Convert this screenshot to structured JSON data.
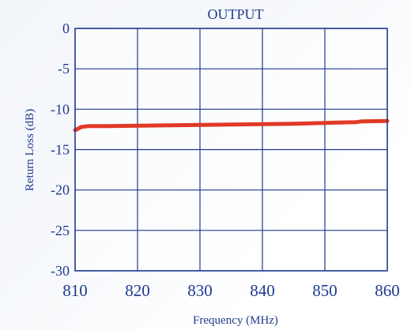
{
  "chart_data": {
    "type": "line",
    "title": "OUTPUT",
    "xlabel": "Frequency (MHz)",
    "ylabel": "Return Loss (dB)",
    "xlim": [
      810,
      860
    ],
    "ylim": [
      -30,
      0
    ],
    "xticks": [
      810,
      820,
      830,
      840,
      850,
      860
    ],
    "yticks": [
      0,
      -5,
      -10,
      -15,
      -20,
      -25,
      -30
    ],
    "grid": true,
    "legend": "none",
    "colors": {
      "axis": "#1f3a8f",
      "grid": "#1f3a8f",
      "text": "#1f3a8f",
      "line": "#e03a26"
    },
    "series": [
      {
        "x": [
          810,
          810.5,
          811,
          812,
          815,
          820,
          825,
          830,
          835,
          840,
          845,
          850,
          852,
          855,
          856,
          860
        ],
        "y": [
          -12.6,
          -12.4,
          -12.2,
          -12.1,
          -12.1,
          -12.05,
          -12.0,
          -11.95,
          -11.9,
          -11.85,
          -11.8,
          -11.7,
          -11.65,
          -11.6,
          -11.5,
          -11.45
        ]
      }
    ]
  }
}
